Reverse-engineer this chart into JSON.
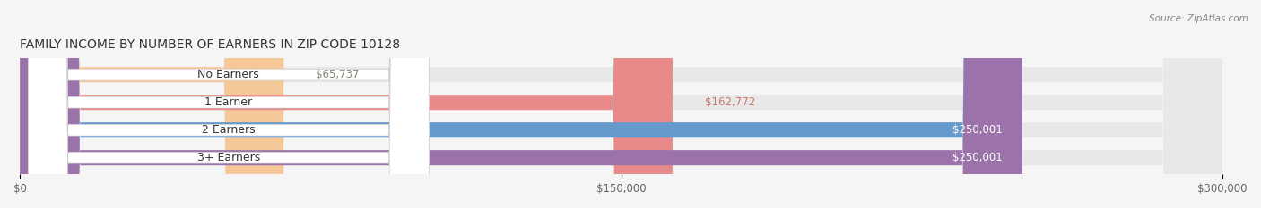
{
  "title": "FAMILY INCOME BY NUMBER OF EARNERS IN ZIP CODE 10128",
  "source": "Source: ZipAtlas.com",
  "categories": [
    "No Earners",
    "1 Earner",
    "2 Earners",
    "3+ Earners"
  ],
  "values": [
    65737,
    162772,
    250001,
    250001
  ],
  "bar_colors": [
    "#f5c89a",
    "#e88a8a",
    "#6699cc",
    "#9b72aa"
  ],
  "bar_edge_colors": [
    "#e8a870",
    "#cc6666",
    "#4477aa",
    "#7755aa"
  ],
  "label_colors": [
    "#888877",
    "#cc7766",
    "#ffffff",
    "#ffffff"
  ],
  "xlim": [
    0,
    300000
  ],
  "xtick_values": [
    0,
    150000,
    300000
  ],
  "xtick_labels": [
    "$0",
    "$150,000",
    "$300,000"
  ],
  "background_color": "#f5f5f5",
  "bar_bg_color": "#e8e8e8",
  "figsize": [
    14.06,
    2.33
  ],
  "dpi": 100
}
